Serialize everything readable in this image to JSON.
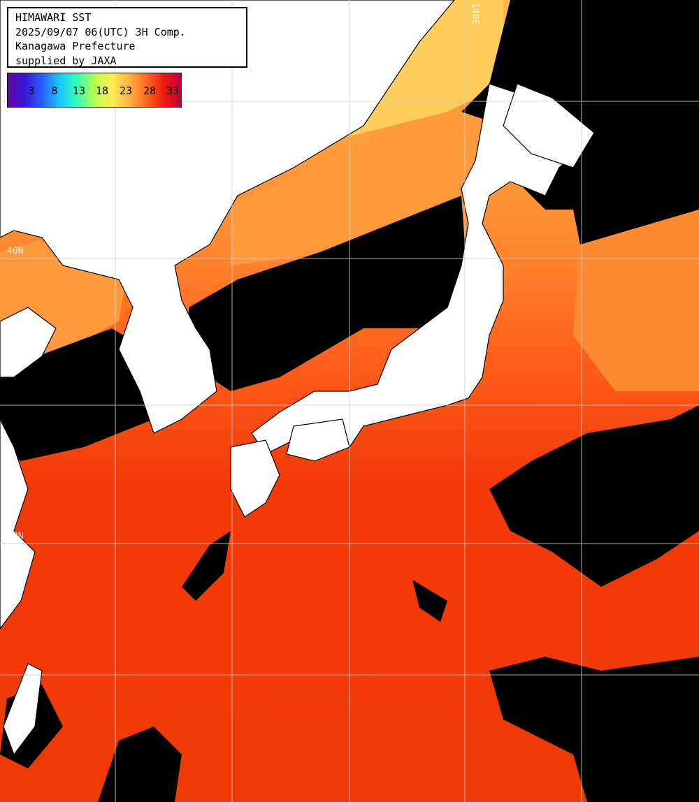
{
  "header": {
    "title": "HIMAWARI SST",
    "datetime": "2025/09/07 06(UTC) 3H Comp.",
    "region": "Kanagawa Prefecture",
    "credit": "supplied by JAXA"
  },
  "colorbar": {
    "ticks": [
      "3",
      "8",
      "13",
      "18",
      "23",
      "28",
      "33"
    ]
  },
  "grid_labels": {
    "lat_40": "40N",
    "lat_30": "30N",
    "lon_140": "140E"
  },
  "colors": {
    "land": "#ffffff",
    "cloud_no_data": "#000000",
    "grid": "#cfcfcf",
    "sst_warm": "#f23a08",
    "sst_mid": "#ff7a22",
    "sst_cool": "#ffd060",
    "sst_cold": "#80f070"
  }
}
